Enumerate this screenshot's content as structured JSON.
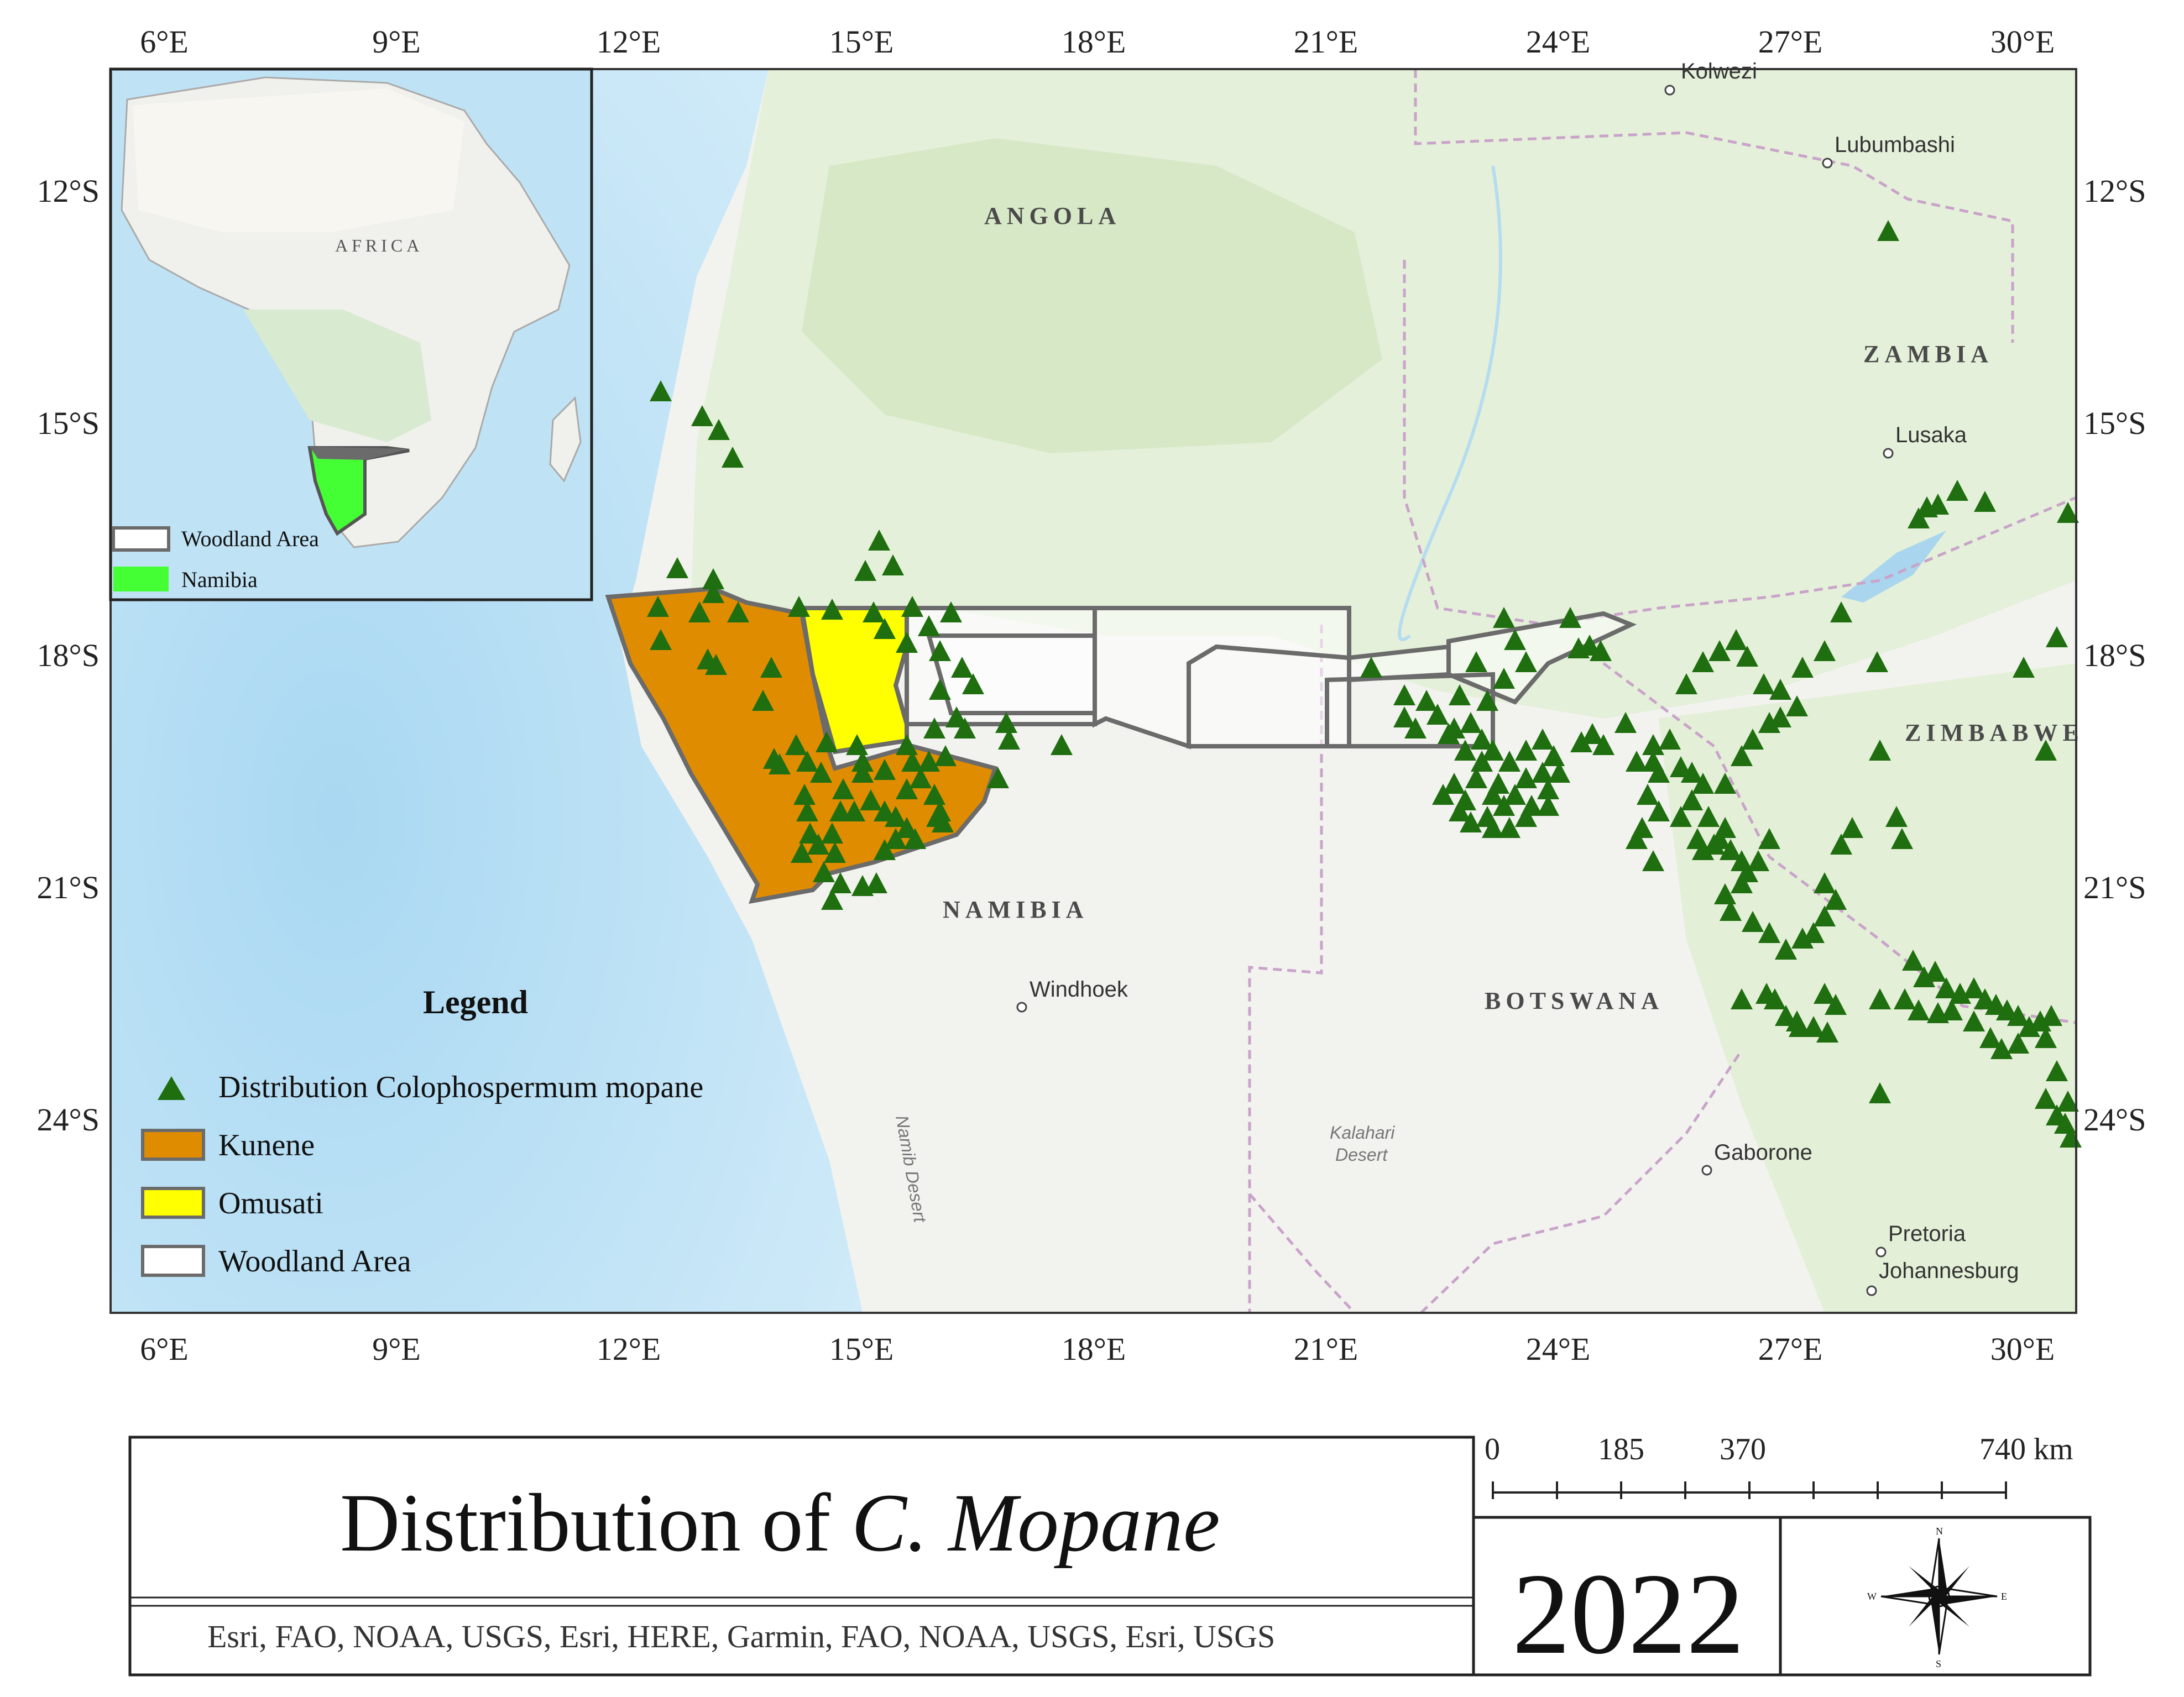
{
  "map": {
    "top_lon_labels": [
      "6°E",
      "9°E",
      "12°E",
      "15°E",
      "18°E",
      "21°E",
      "24°E",
      "27°E",
      "30°E"
    ],
    "bottom_lon_labels": [
      "6°E",
      "9°E",
      "12°E",
      "15°E",
      "18°E",
      "21°E",
      "24°E",
      "27°E",
      "30°E"
    ],
    "left_lat_labels": [
      "12°S",
      "15°S",
      "18°S",
      "21°S",
      "24°S"
    ],
    "right_lat_labels": [
      "12°S",
      "15°S",
      "18°S",
      "21°S",
      "24°S"
    ],
    "countries": [
      "ANGOLA",
      "ZAMBIA",
      "ZIMBABWE",
      "NAMIBIA",
      "BOTSWANA"
    ],
    "cities": [
      "Kolwezi",
      "Lubumbashi",
      "Lusaka",
      "Windhoek",
      "Gaborone",
      "Pretoria",
      "Johannesburg"
    ],
    "features": [
      "Kalahari",
      "Desert",
      "Namib Desert"
    ],
    "colors": {
      "ocean": "#bfe3f5",
      "land": "#f3f3f0",
      "green_land": "#e2efd6",
      "kunene": "#e08c00",
      "omusati": "#ffff00",
      "woodland_border": "#6b6b6b",
      "points": "#1f6e0f",
      "namibia_inset": "#44ff33"
    }
  },
  "inset": {
    "label": "AFRICA",
    "legend": [
      {
        "label": "Woodland Area",
        "swatch": "outline"
      },
      {
        "label": "Namibia",
        "swatch": "#44ff33"
      }
    ]
  },
  "legend": {
    "title": "Legend",
    "items": [
      {
        "label": "Distribution Colophospermum mopane",
        "symbol": "triangle",
        "color": "#1f6e0f"
      },
      {
        "label": "Kunene",
        "symbol": "fill",
        "color": "#e08c00"
      },
      {
        "label": "Omusati",
        "symbol": "fill",
        "color": "#ffff00"
      },
      {
        "label": "Woodland Area",
        "symbol": "outline",
        "color": "#6b6b6b"
      }
    ]
  },
  "footer": {
    "title_plain": "Distribution of ",
    "title_italic": "C. Mopane",
    "credits": "Esri, FAO, NOAA, USGS, Esri, HERE, Garmin, FAO, NOAA, USGS, Esri, USGS",
    "year": "2022",
    "scale_labels": [
      "0",
      "185",
      "370",
      "740 km"
    ],
    "compass": {
      "north": "N",
      "south": "S",
      "east": "E",
      "west": "W",
      "icon": "compass-rose-icon"
    }
  }
}
